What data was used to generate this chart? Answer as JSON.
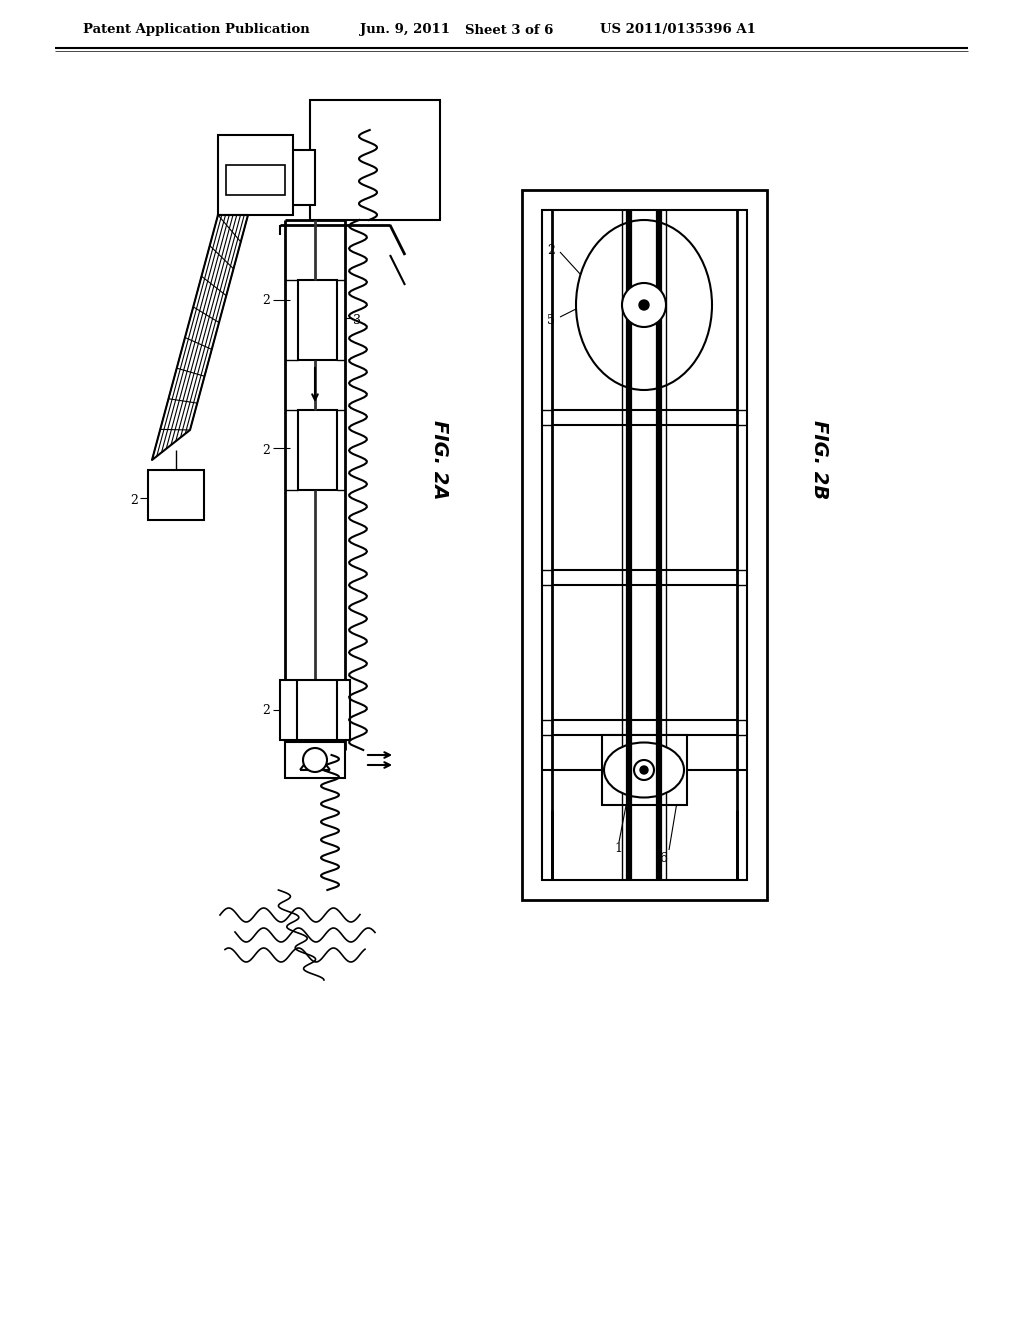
{
  "bg_color": "#ffffff",
  "line_color": "#000000",
  "header_text": "Patent Application Publication",
  "header_date": "Jun. 9, 2011",
  "header_sheet": "Sheet 3 of 6",
  "header_patent": "US 2011/0135396 A1",
  "fig2a_label": "FIG. 2A",
  "fig2b_label": "FIG. 2B"
}
